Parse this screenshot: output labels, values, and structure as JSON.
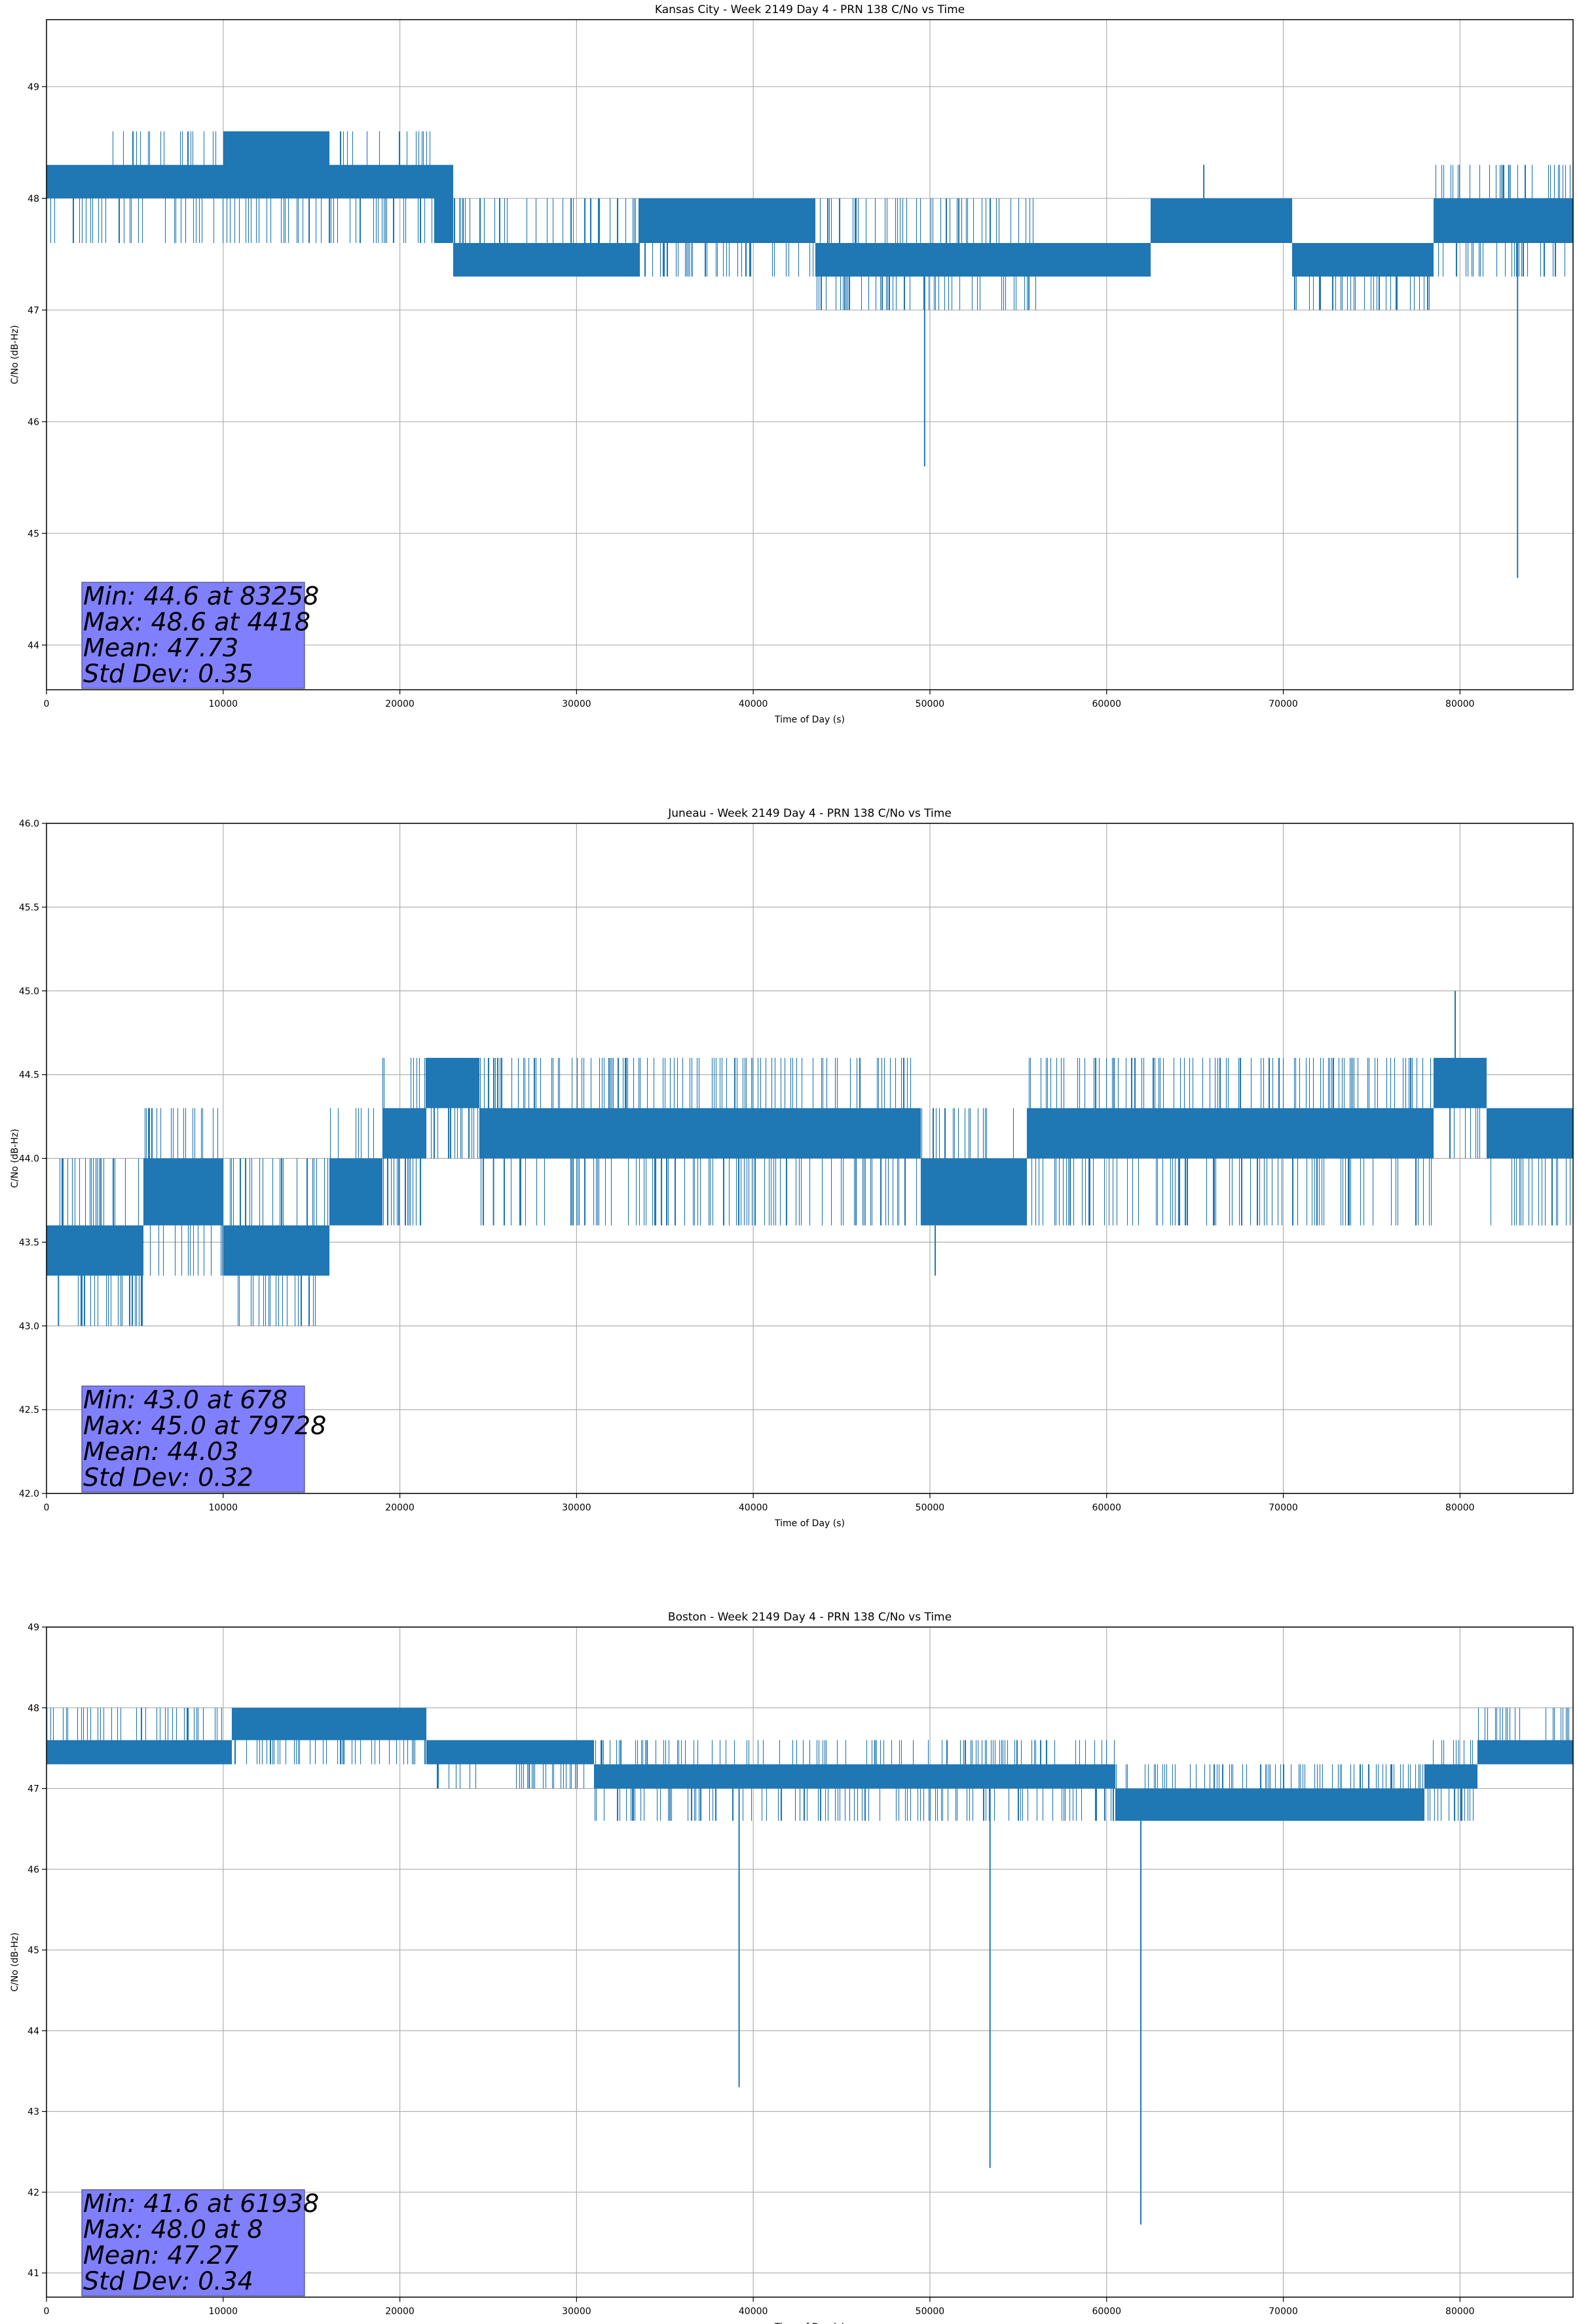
{
  "x_label": "Time of Day (s)",
  "y_label": "C/No (dB-Hz)",
  "colors": {
    "series": "#1f77b4",
    "grid": "#b0b0b0",
    "stats_box": "#8080ff",
    "stats_edge": "#4d4d80",
    "axes": "#000000"
  },
  "chart_data": [
    {
      "type": "line",
      "title": "Kansas City - Week 2149 Day 4 - PRN 138 C/No vs Time",
      "xlabel": "Time of Day (s)",
      "ylabel": "C/No (dB-Hz)",
      "xlim": [
        0,
        86400
      ],
      "ylim": [
        43.6,
        49.6
      ],
      "xticks": [
        0,
        10000,
        20000,
        30000,
        40000,
        50000,
        60000,
        70000,
        80000
      ],
      "yticks": [
        44,
        45,
        46,
        47,
        48,
        49
      ],
      "grid": true,
      "stats": [
        "Min: 44.6 at 83258",
        "Max: 48.6 at 4418",
        "Mean: 47.73",
        "Std Dev: 0.35"
      ],
      "segments": [
        {
          "x": [
            0,
            3500
          ],
          "base": [
            48.0,
            48.3
          ],
          "noise": [
            47.6,
            48.3
          ]
        },
        {
          "x": [
            3500,
            10000
          ],
          "base": [
            48.0,
            48.3
          ],
          "noise": [
            47.6,
            48.6
          ]
        },
        {
          "x": [
            10000,
            16000
          ],
          "base": [
            48.0,
            48.6
          ],
          "noise": [
            47.6,
            48.6
          ]
        },
        {
          "x": [
            16000,
            22000
          ],
          "base": [
            48.0,
            48.3
          ],
          "noise": [
            47.6,
            48.6
          ]
        },
        {
          "x": [
            22000,
            23000
          ],
          "base": [
            47.6,
            48.3
          ],
          "noise": [
            47.6,
            48.3
          ]
        },
        {
          "x": [
            23000,
            33500
          ],
          "base": [
            47.3,
            47.6
          ],
          "noise": [
            47.3,
            48.0
          ]
        },
        {
          "x": [
            33500,
            43500
          ],
          "base": [
            47.6,
            48.0
          ],
          "noise": [
            47.3,
            48.0
          ]
        },
        {
          "x": [
            43500,
            56000
          ],
          "base": [
            47.3,
            47.6
          ],
          "noise": [
            47.0,
            48.0
          ]
        },
        {
          "x": [
            56000,
            62500
          ],
          "base": [
            47.3,
            47.6
          ],
          "noise": [
            47.3,
            47.6
          ]
        },
        {
          "x": [
            62500,
            70500
          ],
          "base": [
            47.6,
            48.0
          ],
          "noise": [
            47.6,
            48.0
          ]
        },
        {
          "x": [
            70500,
            78500
          ],
          "base": [
            47.3,
            47.6
          ],
          "noise": [
            47.0,
            47.6
          ]
        },
        {
          "x": [
            78500,
            86400
          ],
          "base": [
            47.6,
            48.0
          ],
          "noise": [
            47.3,
            48.3
          ]
        }
      ],
      "spikes": [
        [
          49700,
          45.6
        ],
        [
          83258,
          44.6
        ],
        [
          65500,
          48.3
        ]
      ]
    },
    {
      "type": "line",
      "title": "Juneau - Week 2149 Day 4 - PRN 138 C/No vs Time",
      "xlabel": "Time of Day (s)",
      "ylabel": "C/No (dB-Hz)",
      "xlim": [
        0,
        86400
      ],
      "ylim": [
        42.0,
        46.0
      ],
      "xticks": [
        0,
        10000,
        20000,
        30000,
        40000,
        50000,
        60000,
        70000,
        80000
      ],
      "yticks": [
        42.0,
        42.5,
        43.0,
        43.5,
        44.0,
        44.5,
        45.0,
        45.5,
        46.0
      ],
      "grid": true,
      "stats": [
        "Min: 43.0 at 678",
        "Max: 45.0 at 79728",
        "Mean: 44.03",
        "Std Dev: 0.32"
      ],
      "segments": [
        {
          "x": [
            0,
            5500
          ],
          "base": [
            43.3,
            43.6
          ],
          "noise": [
            43.0,
            44.0
          ]
        },
        {
          "x": [
            5500,
            10000
          ],
          "base": [
            43.6,
            44.0
          ],
          "noise": [
            43.3,
            44.3
          ]
        },
        {
          "x": [
            10000,
            16000
          ],
          "base": [
            43.3,
            43.6
          ],
          "noise": [
            43.0,
            44.0
          ]
        },
        {
          "x": [
            16000,
            19000
          ],
          "base": [
            43.6,
            44.0
          ],
          "noise": [
            43.6,
            44.3
          ]
        },
        {
          "x": [
            19000,
            21500
          ],
          "base": [
            44.0,
            44.3
          ],
          "noise": [
            43.6,
            44.6
          ]
        },
        {
          "x": [
            21500,
            24500
          ],
          "base": [
            44.3,
            44.6
          ],
          "noise": [
            44.0,
            44.6
          ]
        },
        {
          "x": [
            24500,
            49500
          ],
          "base": [
            44.0,
            44.3
          ],
          "noise": [
            43.6,
            44.6
          ]
        },
        {
          "x": [
            49500,
            55500
          ],
          "base": [
            43.6,
            44.0
          ],
          "noise": [
            43.6,
            44.3
          ]
        },
        {
          "x": [
            55500,
            78500
          ],
          "base": [
            44.0,
            44.3
          ],
          "noise": [
            43.6,
            44.6
          ]
        },
        {
          "x": [
            78500,
            81500
          ],
          "base": [
            44.3,
            44.6
          ],
          "noise": [
            44.0,
            44.6
          ]
        },
        {
          "x": [
            81500,
            86400
          ],
          "base": [
            44.0,
            44.3
          ],
          "noise": [
            43.6,
            44.3
          ]
        }
      ],
      "spikes": [
        [
          678,
          43.0
        ],
        [
          79728,
          45.0
        ],
        [
          50300,
          43.3
        ],
        [
          25300,
          43.6
        ]
      ]
    },
    {
      "type": "line",
      "title": "Boston - Week 2149 Day 4 - PRN 138 C/No vs Time",
      "xlabel": "Time of Day (s)",
      "ylabel": "C/No (dB-Hz)",
      "xlim": [
        0,
        86400
      ],
      "ylim": [
        40.7,
        49.0
      ],
      "xticks": [
        0,
        10000,
        20000,
        30000,
        40000,
        50000,
        60000,
        70000,
        80000
      ],
      "yticks": [
        41,
        42,
        43,
        44,
        45,
        46,
        47,
        48,
        49
      ],
      "grid": true,
      "stats": [
        "Min: 41.6 at 61938",
        "Max: 48.0 at 8",
        "Mean: 47.27",
        "Std Dev: 0.34"
      ],
      "segments": [
        {
          "x": [
            0,
            10500
          ],
          "base": [
            47.3,
            47.6
          ],
          "noise": [
            47.3,
            48.0
          ]
        },
        {
          "x": [
            10500,
            21500
          ],
          "base": [
            47.6,
            48.0
          ],
          "noise": [
            47.3,
            48.0
          ]
        },
        {
          "x": [
            21500,
            31000
          ],
          "base": [
            47.3,
            47.6
          ],
          "noise": [
            47.0,
            47.6
          ]
        },
        {
          "x": [
            31000,
            60500
          ],
          "base": [
            47.0,
            47.3
          ],
          "noise": [
            46.6,
            47.6
          ]
        },
        {
          "x": [
            60500,
            78000
          ],
          "base": [
            46.6,
            47.0
          ],
          "noise": [
            46.6,
            47.3
          ]
        },
        {
          "x": [
            78000,
            81000
          ],
          "base": [
            47.0,
            47.3
          ],
          "noise": [
            46.6,
            47.6
          ]
        },
        {
          "x": [
            81000,
            86400
          ],
          "base": [
            47.3,
            47.6
          ],
          "noise": [
            47.3,
            48.0
          ]
        }
      ],
      "spikes": [
        [
          8,
          48.0
        ],
        [
          39200,
          43.3
        ],
        [
          53400,
          42.3
        ],
        [
          61938,
          41.6
        ]
      ]
    }
  ]
}
